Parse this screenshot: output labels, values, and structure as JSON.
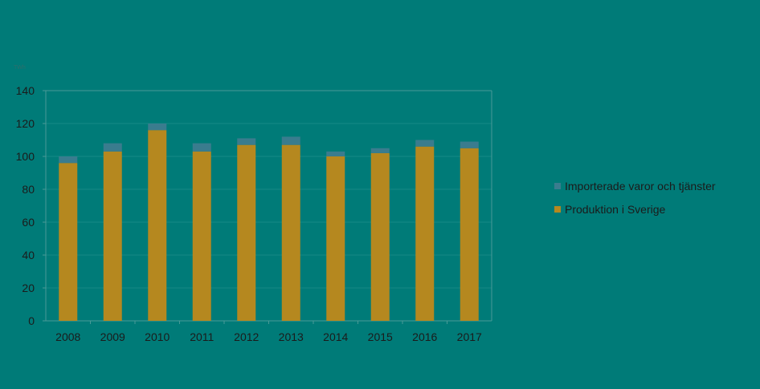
{
  "colors": {
    "background": "#007b78",
    "imported": "#3a7c8e",
    "domestic": "#b5881f",
    "axis": "#4a9a97",
    "text": "#1b1b1b"
  },
  "chart_data": {
    "type": "bar",
    "stacked": true,
    "unit_label": "TWh",
    "categories": [
      "2008",
      "2009",
      "2010",
      "2011",
      "2012",
      "2013",
      "2014",
      "2015",
      "2016",
      "2017"
    ],
    "series": [
      {
        "name": "Produktion i Sverige",
        "color": "#b5881f",
        "values": [
          96,
          103,
          116,
          103,
          107,
          107,
          100,
          102,
          106,
          105
        ]
      },
      {
        "name": "Importerade varor och tjänster",
        "color": "#3a7c8e",
        "values": [
          4,
          5,
          4,
          5,
          4,
          5,
          3,
          3,
          4,
          4
        ]
      }
    ],
    "ylim": [
      0,
      140
    ],
    "yticks": [
      0,
      20,
      40,
      60,
      80,
      100,
      120,
      140
    ],
    "grid": true,
    "legend_position": "right",
    "legend": [
      "Importerade varor och tjänster",
      "Produktion i Sverige"
    ]
  }
}
